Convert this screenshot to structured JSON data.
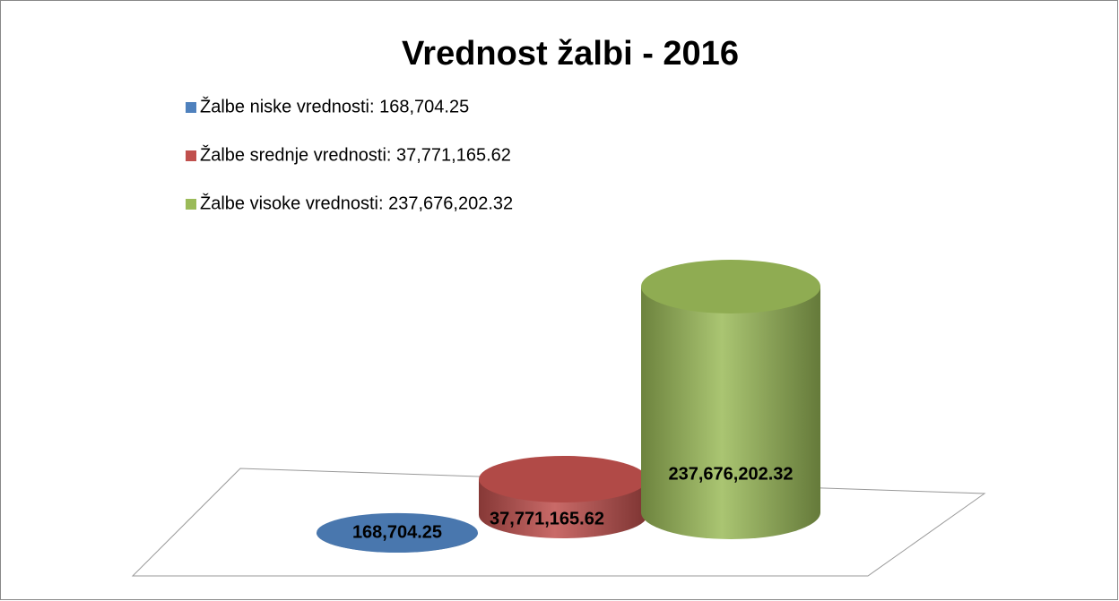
{
  "chart_data": {
    "type": "bar",
    "title": "Vrednost žalbi - 2016",
    "categories": [
      "Žalbe niske vrednosti: 168,704.25",
      "Žalbe srednje vrednosti: 37,771,165.62",
      "Žalbe visoke vrednosti: 237,676,202.32"
    ],
    "values": [
      168704.25,
      37771165.62,
      237676202.32
    ],
    "value_labels": [
      "168,704.25",
      "37,771,165.62",
      "237,676,202.32"
    ],
    "colors": [
      "#4f81bd",
      "#c0504d",
      "#9bbb59"
    ],
    "legend": "top-left"
  }
}
